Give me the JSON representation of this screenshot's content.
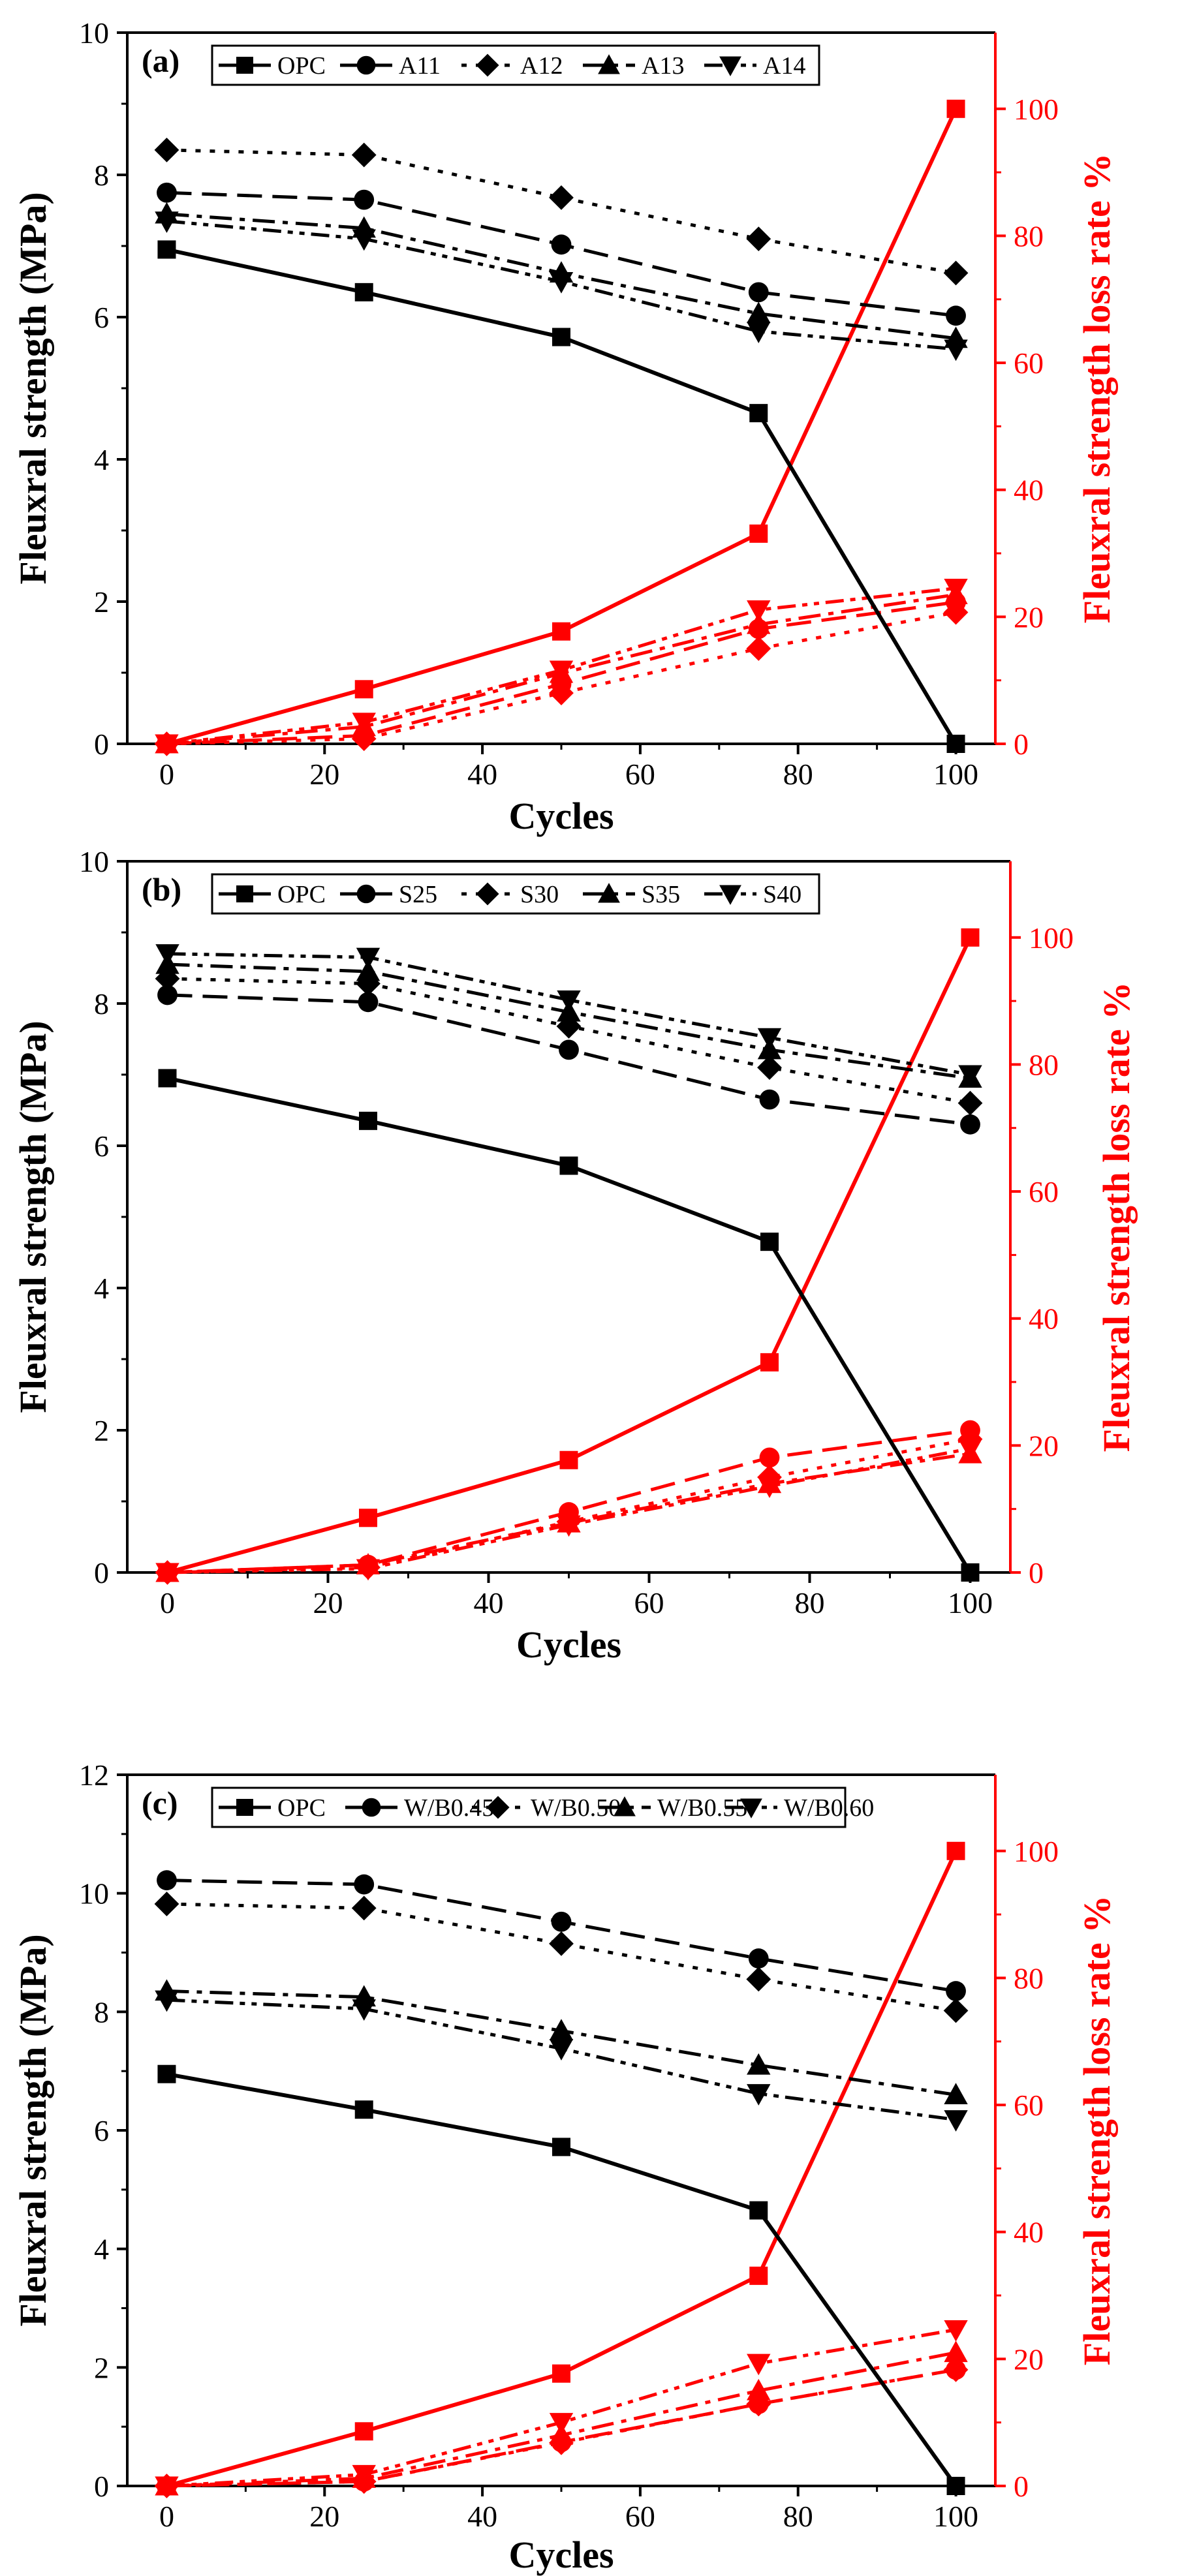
{
  "figure": {
    "black_color": "#000000",
    "red_color": "#ff0000"
  },
  "chart_data": [
    {
      "type": "line",
      "panel_label": "(a)",
      "xlabel": "Cycles",
      "ylabel": "Fleuxral strength (MPa)",
      "y2label": "Fleuxral strength loss rate %",
      "xlim": [
        -5,
        105
      ],
      "ylim": [
        0,
        10
      ],
      "y2lim": [
        0,
        112
      ],
      "xticks": [
        0,
        20,
        40,
        60,
        80,
        100
      ],
      "yticks": [
        0,
        2,
        4,
        6,
        8,
        10
      ],
      "y2ticks": [
        0,
        20,
        40,
        60,
        80,
        100
      ],
      "x": [
        0,
        25,
        50,
        75,
        100
      ],
      "legend": [
        "OPC",
        "A11",
        "A12",
        "A13",
        "A14"
      ],
      "series": [
        {
          "name": "OPC",
          "marker": "square",
          "dash": "solid",
          "values": [
            6.95,
            6.35,
            5.72,
            4.65,
            0.0
          ],
          "loss_rate": [
            0,
            8.6,
            17.7,
            33.1,
            100
          ]
        },
        {
          "name": "A11",
          "marker": "circle",
          "dash": "dash",
          "values": [
            7.75,
            7.65,
            7.02,
            6.35,
            6.02
          ],
          "loss_rate": [
            0,
            1.3,
            9.4,
            18.1,
            22.3
          ]
        },
        {
          "name": "A12",
          "marker": "diamond",
          "dash": "dot",
          "values": [
            8.35,
            8.28,
            7.68,
            7.1,
            6.62
          ],
          "loss_rate": [
            0,
            0.8,
            8.0,
            15.0,
            20.7
          ]
        },
        {
          "name": "A13",
          "marker": "triangle-up",
          "dash": "dashdot",
          "values": [
            7.45,
            7.25,
            6.62,
            6.05,
            5.7
          ],
          "loss_rate": [
            0,
            2.7,
            11.1,
            18.8,
            23.5
          ]
        },
        {
          "name": "A14",
          "marker": "triangle-down",
          "dash": "dashdotdot",
          "values": [
            7.35,
            7.1,
            6.5,
            5.8,
            5.55
          ],
          "loss_rate": [
            0,
            3.4,
            11.6,
            21.1,
            24.5
          ]
        }
      ]
    },
    {
      "type": "line",
      "panel_label": "(b)",
      "xlabel": "Cycles",
      "ylabel": "Fleuxral strength (MPa)",
      "y2label": "Fleuxral strength loss rate %",
      "xlim": [
        -5,
        105
      ],
      "ylim": [
        0,
        10
      ],
      "y2lim": [
        0,
        112
      ],
      "xticks": [
        0,
        20,
        40,
        60,
        80,
        100
      ],
      "yticks": [
        0,
        2,
        4,
        6,
        8,
        10
      ],
      "y2ticks": [
        0,
        20,
        40,
        60,
        80,
        100
      ],
      "x": [
        0,
        25,
        50,
        75,
        100
      ],
      "legend": [
        "OPC",
        "S25",
        "S30",
        "S35",
        "S40"
      ],
      "series": [
        {
          "name": "OPC",
          "marker": "square",
          "dash": "solid",
          "values": [
            6.95,
            6.35,
            5.72,
            4.65,
            0.0
          ],
          "loss_rate": [
            0,
            8.6,
            17.7,
            33.1,
            100
          ]
        },
        {
          "name": "S25",
          "marker": "circle",
          "dash": "dash",
          "values": [
            8.12,
            8.02,
            7.35,
            6.65,
            6.3
          ],
          "loss_rate": [
            0,
            1.2,
            9.5,
            18.1,
            22.4
          ]
        },
        {
          "name": "S30",
          "marker": "diamond",
          "dash": "dot",
          "values": [
            8.35,
            8.28,
            7.68,
            7.1,
            6.6
          ],
          "loss_rate": [
            0,
            0.8,
            8.0,
            15.0,
            21.0
          ]
        },
        {
          "name": "S35",
          "marker": "triangle-up",
          "dash": "dashdot",
          "values": [
            8.55,
            8.45,
            7.88,
            7.35,
            6.95
          ],
          "loss_rate": [
            0,
            1.2,
            7.8,
            14.0,
            18.7
          ]
        },
        {
          "name": "S40",
          "marker": "triangle-down",
          "dash": "dashdotdot",
          "values": [
            8.7,
            8.65,
            8.05,
            7.52,
            7.0
          ],
          "loss_rate": [
            0,
            0.6,
            7.5,
            13.6,
            19.5
          ]
        }
      ]
    },
    {
      "type": "line",
      "panel_label": "(c)",
      "xlabel": "Cycles",
      "ylabel": "Fleuxral strength (MPa)",
      "y2label": "Fleuxral strength loss rate %",
      "xlim": [
        -5,
        105
      ],
      "ylim": [
        0,
        12
      ],
      "y2lim": [
        0,
        112
      ],
      "xticks": [
        0,
        20,
        40,
        60,
        80,
        100
      ],
      "yticks": [
        0,
        2,
        4,
        6,
        8,
        10,
        12
      ],
      "y2ticks": [
        0,
        20,
        40,
        60,
        80,
        100
      ],
      "x": [
        0,
        25,
        50,
        75,
        100
      ],
      "legend": [
        "OPC",
        "W/B0.45",
        "W/B0.50",
        "W/B0.55",
        "W/B0.60"
      ],
      "series": [
        {
          "name": "OPC",
          "marker": "square",
          "dash": "solid",
          "values": [
            6.95,
            6.35,
            5.72,
            4.65,
            0.0
          ],
          "loss_rate": [
            0,
            8.6,
            17.7,
            33.1,
            100
          ]
        },
        {
          "name": "W/B0.45",
          "marker": "circle",
          "dash": "dash",
          "values": [
            10.22,
            10.15,
            9.52,
            8.9,
            8.35
          ],
          "loss_rate": [
            0,
            0.7,
            6.9,
            12.9,
            18.3
          ]
        },
        {
          "name": "W/B0.50",
          "marker": "diamond",
          "dash": "dot",
          "values": [
            9.82,
            9.75,
            9.15,
            8.55,
            8.02
          ],
          "loss_rate": [
            0,
            0.7,
            6.8,
            12.9,
            18.3
          ]
        },
        {
          "name": "W/B0.55",
          "marker": "triangle-up",
          "dash": "dashdot",
          "values": [
            8.35,
            8.25,
            7.68,
            7.1,
            6.6
          ],
          "loss_rate": [
            0,
            1.2,
            8.0,
            15.0,
            21.0
          ]
        },
        {
          "name": "W/B0.60",
          "marker": "triangle-down",
          "dash": "dashdotdot",
          "values": [
            8.2,
            8.05,
            7.38,
            6.62,
            6.18
          ],
          "loss_rate": [
            0,
            1.8,
            10.0,
            19.3,
            24.6
          ]
        }
      ]
    }
  ]
}
